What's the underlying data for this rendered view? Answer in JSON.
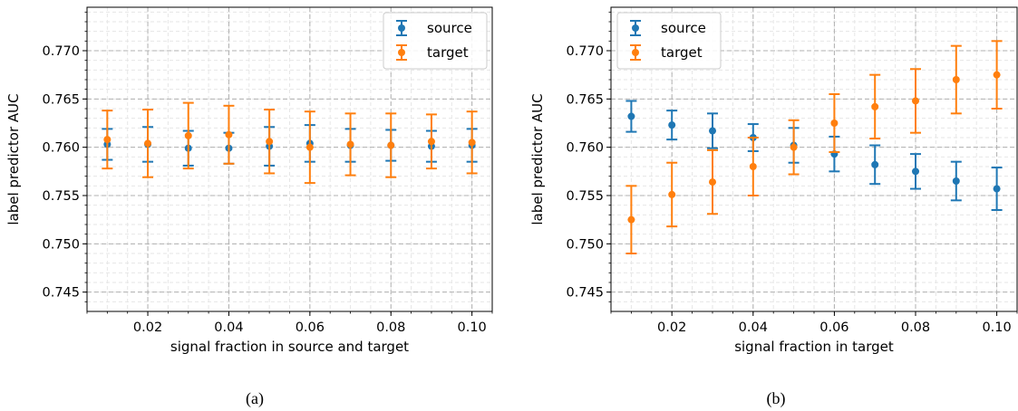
{
  "figure": {
    "caption_a": "(a)",
    "caption_b": "(b)"
  },
  "chart_data": [
    {
      "type": "scatter",
      "error_bars": true,
      "xlabel": "signal fraction in source and target",
      "ylabel": "label predictor AUC",
      "xlim": [
        0.005,
        0.105
      ],
      "ylim": [
        0.743,
        0.7745
      ],
      "xticks": [
        0.02,
        0.04,
        0.06,
        0.08,
        0.1
      ],
      "xtick_labels": [
        "0.02",
        "0.04",
        "0.06",
        "0.08",
        "0.10"
      ],
      "yticks": [
        0.745,
        0.75,
        0.755,
        0.76,
        0.765,
        0.77
      ],
      "ytick_labels": [
        "0.745",
        "0.750",
        "0.755",
        "0.760",
        "0.765",
        "0.770"
      ],
      "grid": true,
      "legend_position": "top-right",
      "series": [
        {
          "name": "source",
          "color": "#1f77b4",
          "x": [
            0.01,
            0.02,
            0.03,
            0.04,
            0.05,
            0.06,
            0.07,
            0.08,
            0.09,
            0.1
          ],
          "y": [
            0.7603,
            0.7603,
            0.7599,
            0.7599,
            0.7601,
            0.7604,
            0.7602,
            0.7602,
            0.7601,
            0.7602
          ],
          "err": [
            0.0016,
            0.0018,
            0.0018,
            0.0016,
            0.002,
            0.0019,
            0.0017,
            0.0016,
            0.0016,
            0.0017
          ]
        },
        {
          "name": "target",
          "color": "#ff7f0e",
          "x": [
            0.01,
            0.02,
            0.03,
            0.04,
            0.05,
            0.06,
            0.07,
            0.08,
            0.09,
            0.1
          ],
          "y": [
            0.7608,
            0.7604,
            0.7612,
            0.7613,
            0.7606,
            0.76,
            0.7603,
            0.7602,
            0.7606,
            0.7605
          ],
          "err": [
            0.003,
            0.0035,
            0.0034,
            0.003,
            0.0033,
            0.0037,
            0.0032,
            0.0033,
            0.0028,
            0.0032
          ]
        }
      ]
    },
    {
      "type": "scatter",
      "error_bars": true,
      "xlabel": "signal fraction in target",
      "ylabel": "label predictor AUC",
      "xlim": [
        0.005,
        0.105
      ],
      "ylim": [
        0.743,
        0.7745
      ],
      "xticks": [
        0.02,
        0.04,
        0.06,
        0.08,
        0.1
      ],
      "xtick_labels": [
        "0.02",
        "0.04",
        "0.06",
        "0.08",
        "0.10"
      ],
      "yticks": [
        0.745,
        0.75,
        0.755,
        0.76,
        0.765,
        0.77
      ],
      "ytick_labels": [
        "0.745",
        "0.750",
        "0.755",
        "0.760",
        "0.765",
        "0.770"
      ],
      "grid": true,
      "legend_position": "top-left",
      "series": [
        {
          "name": "source",
          "color": "#1f77b4",
          "x": [
            0.01,
            0.02,
            0.03,
            0.04,
            0.05,
            0.06,
            0.07,
            0.08,
            0.09,
            0.1
          ],
          "y": [
            0.7632,
            0.7623,
            0.7617,
            0.761,
            0.7602,
            0.7593,
            0.7582,
            0.7575,
            0.7565,
            0.7557
          ],
          "err": [
            0.0016,
            0.0015,
            0.0018,
            0.0014,
            0.0018,
            0.0018,
            0.002,
            0.0018,
            0.002,
            0.0022
          ]
        },
        {
          "name": "target",
          "color": "#ff7f0e",
          "x": [
            0.01,
            0.02,
            0.03,
            0.04,
            0.05,
            0.06,
            0.07,
            0.08,
            0.09,
            0.1
          ],
          "y": [
            0.7525,
            0.7551,
            0.7564,
            0.758,
            0.76,
            0.7625,
            0.7642,
            0.7648,
            0.767,
            0.7675
          ],
          "err": [
            0.0035,
            0.0033,
            0.0033,
            0.003,
            0.0028,
            0.003,
            0.0033,
            0.0033,
            0.0035,
            0.0035
          ]
        }
      ]
    }
  ]
}
